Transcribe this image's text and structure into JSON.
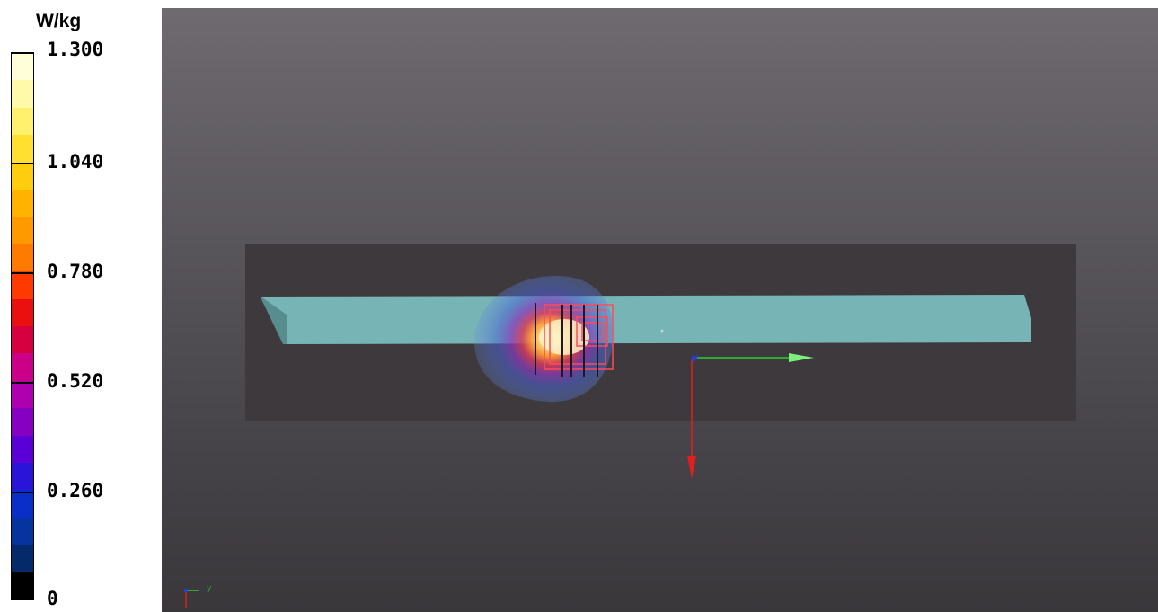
{
  "legend": {
    "unit": "W/kg",
    "ticks": [
      "1.300",
      "1.040",
      "0.780",
      "0.520",
      "0.260",
      "0"
    ],
    "colors": [
      "#fffed8",
      "#fffaaa",
      "#fff06e",
      "#ffe031",
      "#ffcc10",
      "#ffb300",
      "#ff9900",
      "#ff7a00",
      "#ff3a00",
      "#ea1010",
      "#d60040",
      "#cc0088",
      "#ae00ae",
      "#8600c2",
      "#5a00d6",
      "#2a14d8",
      "#0a2ec8",
      "#05349e",
      "#042a6a",
      "#000000"
    ]
  },
  "viewport": {
    "colors": {
      "phantom_box": "#3d393d",
      "shelf": "#7cc2c2",
      "axis_x": "#2ecc2e",
      "axis_y": "#e02020",
      "axis_z": "#1f3fd8",
      "measurement_grid": "#ff4a5a",
      "hotspot_core": "#fff0c8"
    },
    "mini_axis_label": "y"
  }
}
